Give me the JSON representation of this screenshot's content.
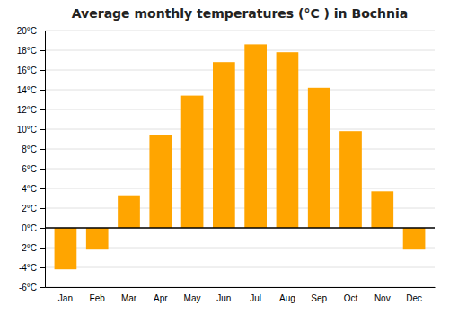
{
  "chart_data": {
    "type": "bar",
    "title": "Average monthly temperatures (°C ) in Bochnia",
    "categories": [
      "Jan",
      "Feb",
      "Mar",
      "Apr",
      "May",
      "Jun",
      "Jul",
      "Aug",
      "Sep",
      "Oct",
      "Nov",
      "Dec"
    ],
    "values": [
      -4.2,
      -2.2,
      3.3,
      9.4,
      13.4,
      16.8,
      18.6,
      17.8,
      14.2,
      9.8,
      3.7,
      -2.2
    ],
    "color": "#FFA500",
    "ylim": [
      -6,
      20
    ],
    "yticks": [
      {
        "value": -6,
        "label": "-6°C"
      },
      {
        "value": -4,
        "label": "-4°C"
      },
      {
        "value": -2,
        "label": "-2°C"
      },
      {
        "value": 0,
        "label": "0°C"
      },
      {
        "value": 2,
        "label": "2°C"
      },
      {
        "value": 4,
        "label": "4°C"
      },
      {
        "value": 6,
        "label": "6°C"
      },
      {
        "value": 8,
        "label": "8°C"
      },
      {
        "value": 10,
        "label": "10°C"
      },
      {
        "value": 12,
        "label": "12°C"
      },
      {
        "value": 14,
        "label": "14°C"
      },
      {
        "value": 16,
        "label": "16°C"
      },
      {
        "value": 18,
        "label": "18°C"
      },
      {
        "value": 20,
        "label": "20°C"
      }
    ],
    "grid": true
  }
}
